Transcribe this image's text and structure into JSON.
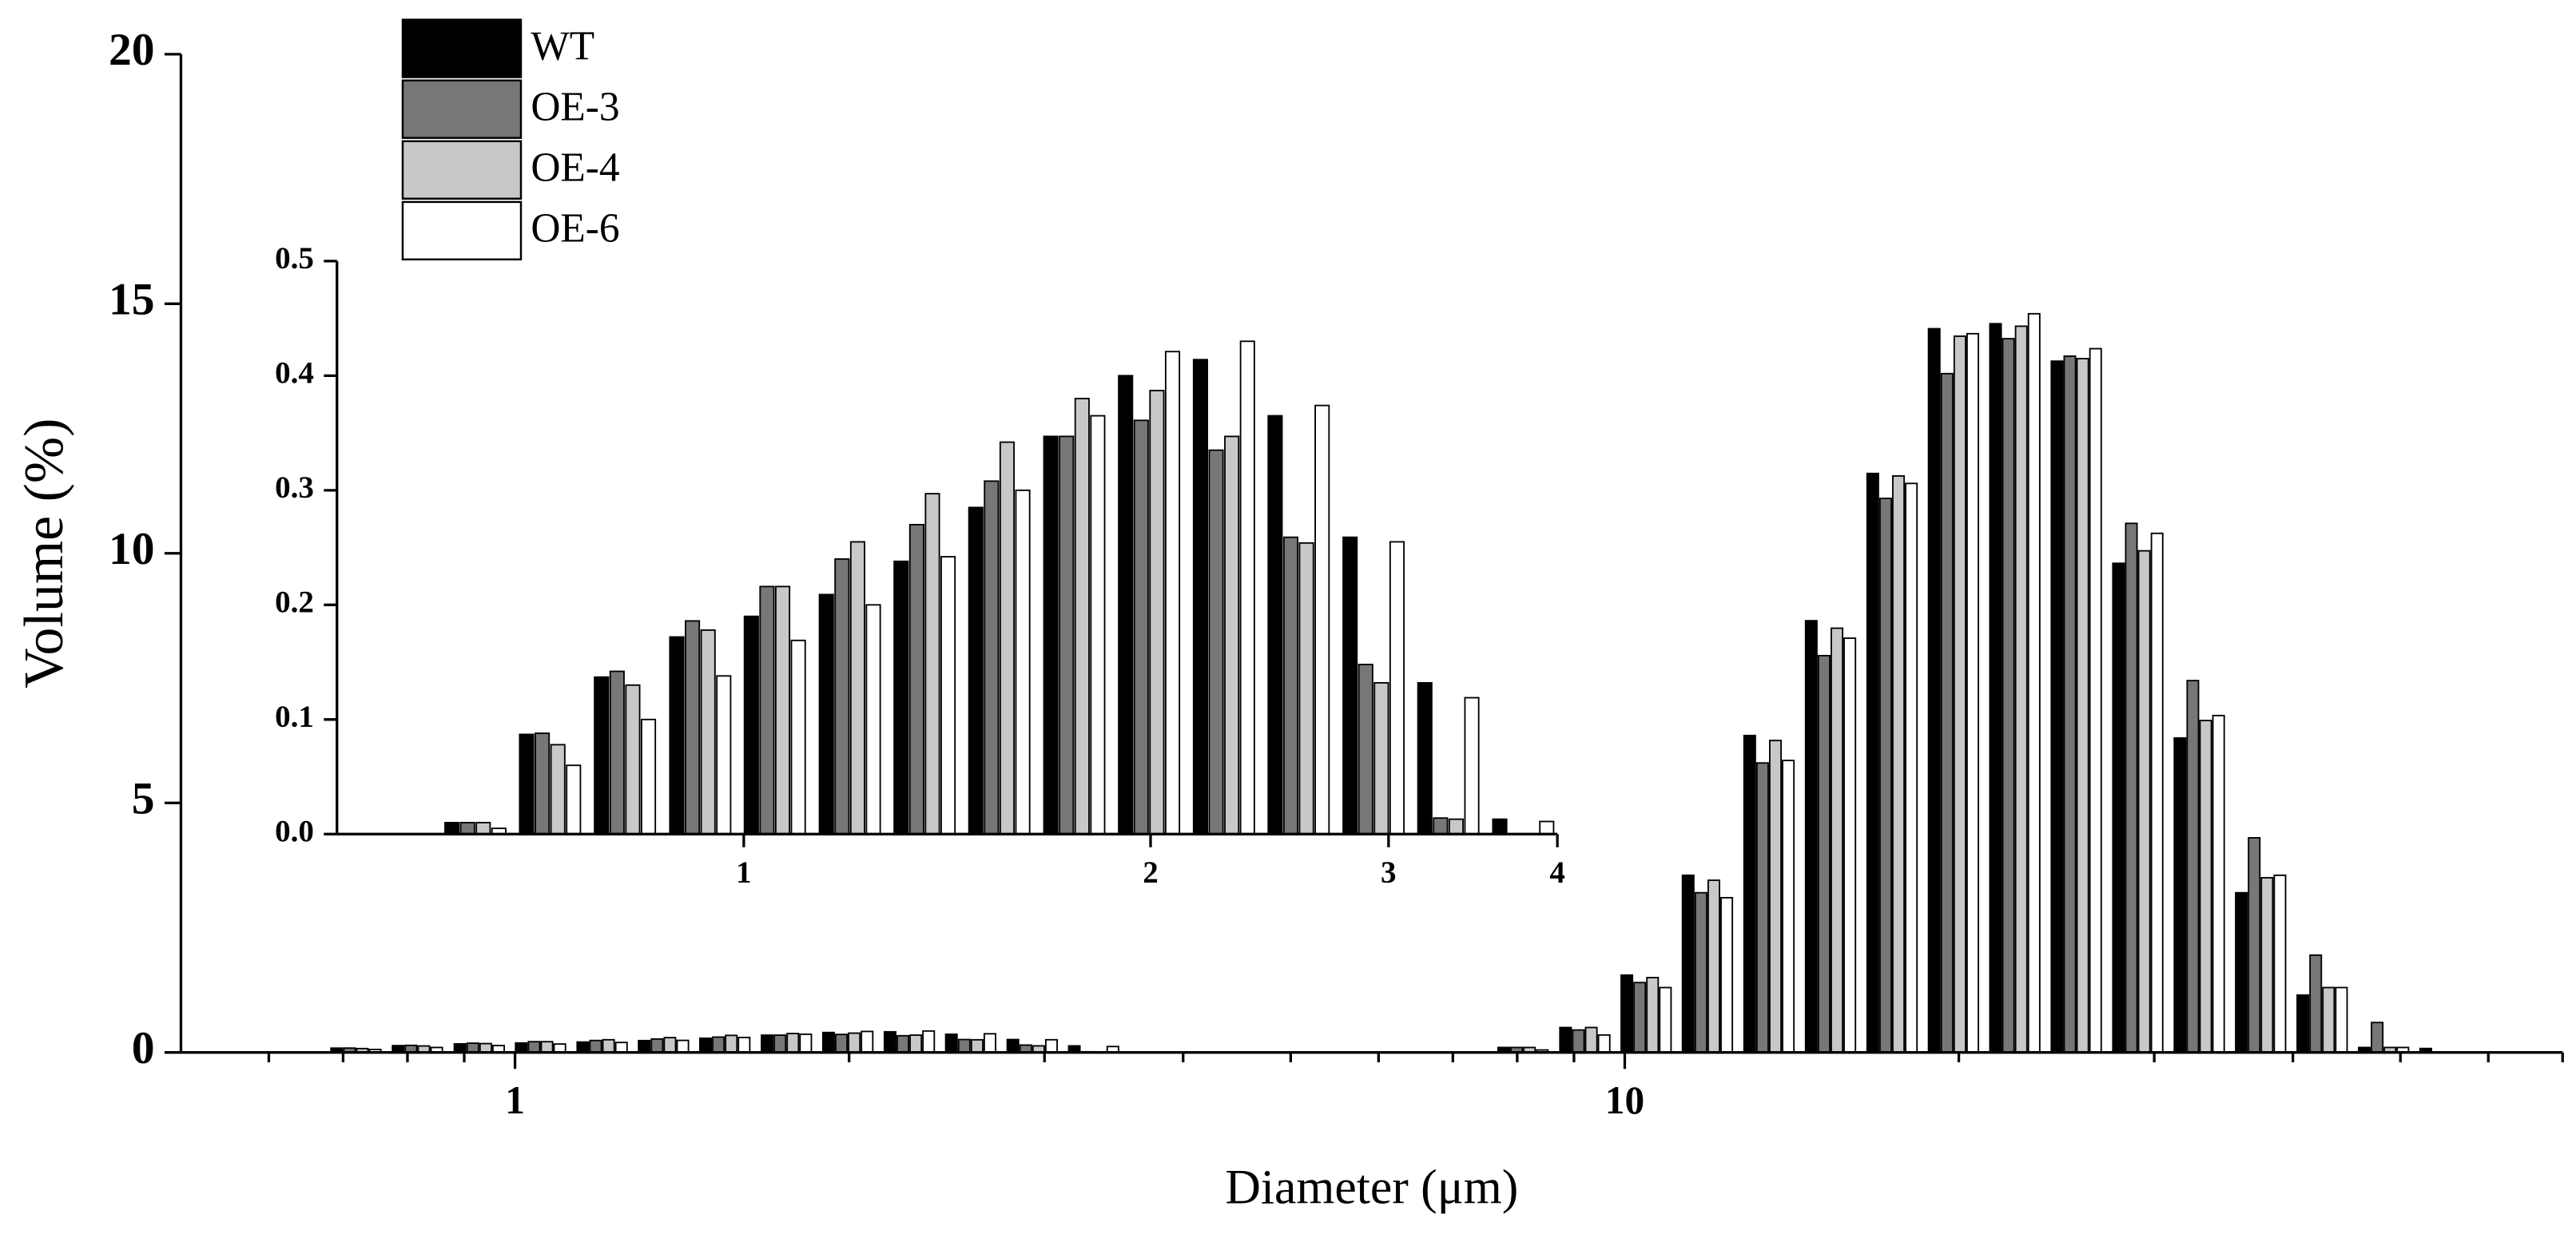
{
  "chart_data": [
    {
      "type": "bar",
      "xscale": "log",
      "xlabel": "Diameter (μm)",
      "ylabel": "Volume (%)",
      "legend": "upper left",
      "x": [
        0.634,
        0.72,
        0.818,
        0.93,
        1.056,
        1.2,
        1.363,
        1.548,
        1.759,
        1.998,
        2.27,
        2.578,
        2.929,
        3.327,
        3.78,
        8.11,
        9.22,
        10.47,
        11.89,
        13.51,
        15.35,
        17.44,
        19.81,
        22.5,
        25.56,
        29.04,
        32.99,
        37.47,
        42.57,
        48.36,
        54.93
      ],
      "series": [
        {
          "name": "WT",
          "color": "#000000",
          "values": [
            0.01,
            0.087,
            0.137,
            0.172,
            0.19,
            0.209,
            0.238,
            0.285,
            0.347,
            0.4,
            0.414,
            0.365,
            0.259,
            0.132,
            0.013,
            0.1,
            0.5,
            1.55,
            3.55,
            6.35,
            8.65,
            11.6,
            14.5,
            14.6,
            13.85,
            9.8,
            6.3,
            3.2,
            1.15,
            0.1,
            0.08
          ]
        },
        {
          "name": "OE-3",
          "color": "#777777",
          "values": [
            0.01,
            0.088,
            0.142,
            0.186,
            0.216,
            0.24,
            0.27,
            0.308,
            0.347,
            0.361,
            0.335,
            0.259,
            0.148,
            0.014,
            0,
            0.1,
            0.45,
            1.4,
            3.2,
            5.8,
            7.95,
            11.1,
            13.6,
            14.3,
            13.95,
            10.6,
            7.45,
            4.3,
            1.95,
            0.6,
            0
          ]
        },
        {
          "name": "OE-4",
          "color": "#c8c8c8",
          "values": [
            0.01,
            0.078,
            0.13,
            0.178,
            0.216,
            0.255,
            0.297,
            0.342,
            0.38,
            0.387,
            0.347,
            0.254,
            0.132,
            0.013,
            0,
            0.1,
            0.5,
            1.5,
            3.45,
            6.25,
            8.5,
            11.55,
            14.35,
            14.55,
            13.9,
            10.05,
            6.65,
            3.5,
            1.3,
            0.1,
            0
          ]
        },
        {
          "name": "OE-6",
          "color": "#ffffff",
          "values": [
            0.005,
            0.06,
            0.1,
            0.138,
            0.169,
            0.2,
            0.242,
            0.3,
            0.365,
            0.421,
            0.43,
            0.374,
            0.255,
            0.119,
            0.011,
            0.05,
            0.35,
            1.3,
            3.1,
            5.85,
            8.3,
            11.4,
            14.4,
            14.8,
            14.1,
            10.4,
            6.75,
            3.55,
            1.3,
            0.1,
            0
          ]
        }
      ],
      "xlim": [
        0.5,
        70
      ],
      "xticks": [
        1,
        10
      ],
      "xminorticks": [
        0.6,
        0.7,
        0.8,
        0.9,
        2,
        3,
        4,
        5,
        6,
        7,
        8,
        9,
        20,
        30,
        40,
        50,
        60,
        70
      ],
      "ylim": [
        0,
        20
      ],
      "yticks": [
        0,
        5,
        10,
        15,
        20
      ]
    },
    {
      "type": "bar",
      "xscale": "log",
      "x": [
        0.634,
        0.72,
        0.818,
        0.93,
        1.056,
        1.2,
        1.363,
        1.548,
        1.759,
        1.998,
        2.27,
        2.578,
        2.929,
        3.327,
        3.78
      ],
      "series": [
        {
          "name": "WT",
          "color": "#000000",
          "values": [
            0.01,
            0.087,
            0.137,
            0.172,
            0.19,
            0.209,
            0.238,
            0.285,
            0.347,
            0.4,
            0.414,
            0.365,
            0.259,
            0.132,
            0.013
          ]
        },
        {
          "name": "OE-3",
          "color": "#777777",
          "values": [
            0.01,
            0.088,
            0.142,
            0.186,
            0.216,
            0.24,
            0.27,
            0.308,
            0.347,
            0.361,
            0.335,
            0.259,
            0.148,
            0.014,
            0
          ]
        },
        {
          "name": "OE-4",
          "color": "#c8c8c8",
          "values": [
            0.01,
            0.078,
            0.13,
            0.178,
            0.216,
            0.255,
            0.297,
            0.342,
            0.38,
            0.387,
            0.347,
            0.254,
            0.132,
            0.013,
            0
          ]
        },
        {
          "name": "OE-6",
          "color": "#ffffff",
          "values": [
            0.005,
            0.06,
            0.1,
            0.138,
            0.169,
            0.2,
            0.242,
            0.3,
            0.365,
            0.421,
            0.43,
            0.374,
            0.255,
            0.119,
            0.011
          ]
        }
      ],
      "xlim": [
        0.5,
        4
      ],
      "xticks": [
        1,
        2,
        3,
        4
      ],
      "ylim": [
        0,
        0.5
      ],
      "yticks": [
        {
          "value": 0,
          "label": "0.0"
        },
        0.1,
        0.2,
        0.3,
        0.4,
        0.5
      ]
    }
  ]
}
